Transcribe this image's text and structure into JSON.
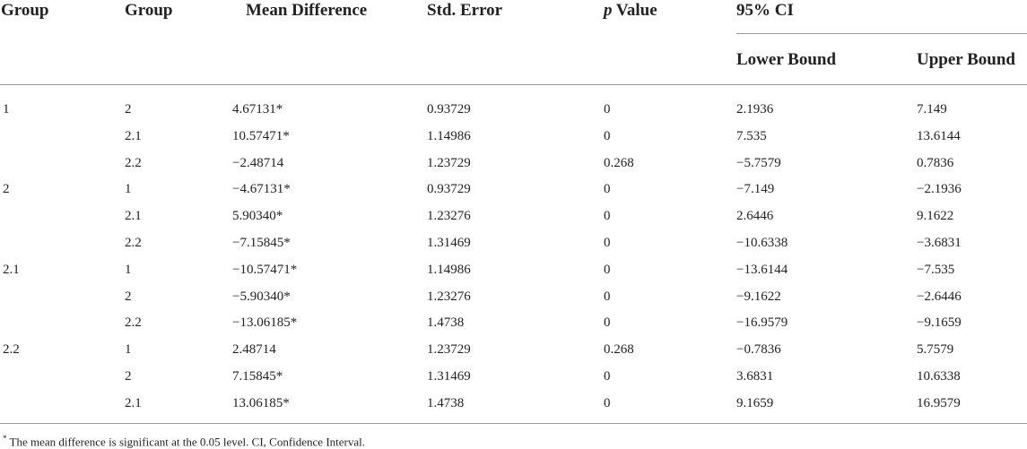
{
  "headers": {
    "group1": "Group",
    "group2": "Group",
    "mean_difference": "Mean Difference",
    "std_error": "Std. Error",
    "p_italic": "p",
    "p_rest": " Value",
    "ci": "95% CI",
    "lower_bound": "Lower Bound",
    "upper_bound": "Upper Bound"
  },
  "rows": [
    [
      "1",
      "2",
      "4.67131*",
      "0.93729",
      "0",
      "2.1936",
      "7.149"
    ],
    [
      "",
      "2.1",
      "10.57471*",
      "1.14986",
      "0",
      "7.535",
      "13.6144"
    ],
    [
      "",
      "2.2",
      "−2.48714",
      "1.23729",
      "0.268",
      "−5.7579",
      "0.7836"
    ],
    [
      "2",
      "1",
      "−4.67131*",
      "0.93729",
      "0",
      "−7.149",
      "−2.1936"
    ],
    [
      "",
      "2.1",
      "5.90340*",
      "1.23276",
      "0",
      "2.6446",
      "9.1622"
    ],
    [
      "",
      "2.2",
      "−7.15845*",
      "1.31469",
      "0",
      "−10.6338",
      "−3.6831"
    ],
    [
      "2.1",
      "1",
      "−10.57471*",
      "1.14986",
      "0",
      "−13.6144",
      "−7.535"
    ],
    [
      "",
      "2",
      "−5.90340*",
      "1.23276",
      "0",
      "−9.1622",
      "−2.6446"
    ],
    [
      "",
      "2.2",
      "−13.06185*",
      "1.4738",
      "0",
      "−16.9579",
      "−9.1659"
    ],
    [
      "2.2",
      "1",
      "2.48714",
      "1.23729",
      "0.268",
      "−0.7836",
      "5.7579"
    ],
    [
      "",
      "2",
      "7.15845*",
      "1.31469",
      "0",
      "3.6831",
      "10.6338"
    ],
    [
      "",
      "2.1",
      "13.06185*",
      "1.4738",
      "0",
      "9.1659",
      "16.9579"
    ]
  ],
  "footnote": {
    "mark": "*",
    "text": " The mean difference is significant at the 0.05 level. CI, Confidence Interval."
  }
}
